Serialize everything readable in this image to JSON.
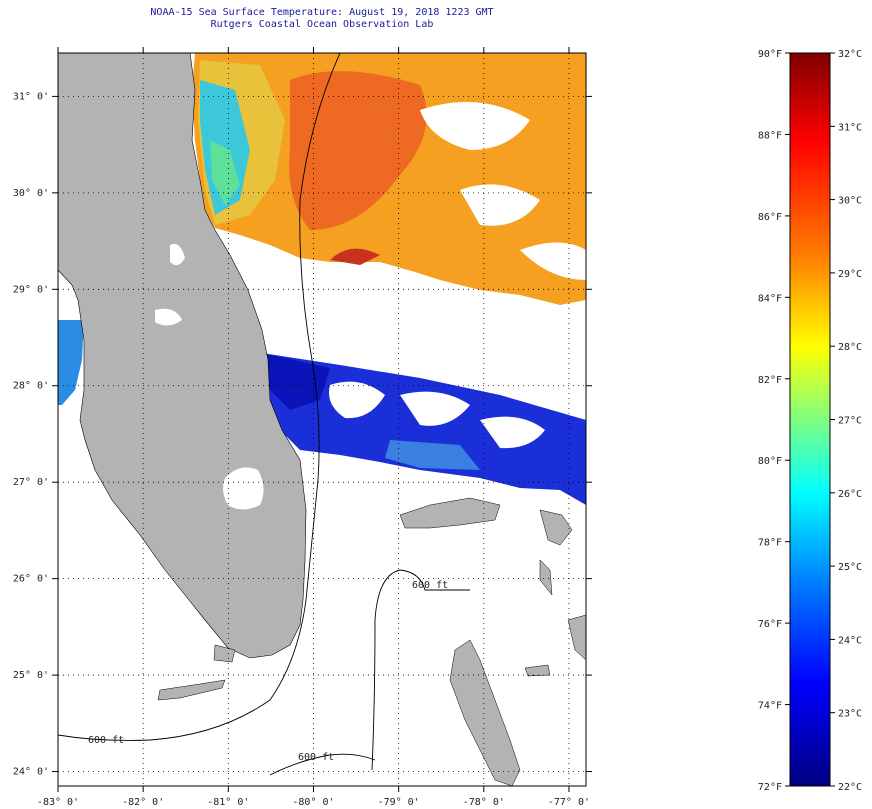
{
  "header": {
    "title": "NOAA-15 Sea Surface Temperature:  August 19, 2018 1223 GMT",
    "subtitle": "Rutgers Coastal Ocean Observation Lab"
  },
  "map": {
    "lon_range": [
      -83,
      -76.8
    ],
    "lat_range": [
      23.85,
      31.45
    ],
    "lat_ticks": [
      "31° 0'",
      "30° 0'",
      "29° 0'",
      "28° 0'",
      "27° 0'",
      "26° 0'",
      "25° 0'",
      "24° 0'"
    ],
    "lon_ticks": [
      "-83° 0'",
      "-82° 0'",
      "-81° 0'",
      "-80° 0'",
      "-79° 0'",
      "-78° 0'",
      "-77° 0'"
    ],
    "contour_label": "600 ft",
    "colors": {
      "land": "#b3b3b3",
      "ocean_missing": "#ffffff",
      "grid": "#000000"
    }
  },
  "colorbar": {
    "fahrenheit": [
      "90°F",
      "88°F",
      "86°F",
      "84°F",
      "82°F",
      "80°F",
      "78°F",
      "76°F",
      "74°F",
      "72°F"
    ],
    "celsius": [
      "32°C",
      "31°C",
      "30°C",
      "29°C",
      "28°C",
      "27°C",
      "26°C",
      "25°C",
      "24°C",
      "23°C",
      "22°C"
    ],
    "stops": [
      "#800000",
      "#ff0000",
      "#ff8000",
      "#ffff00",
      "#80ff80",
      "#00ffff",
      "#0080ff",
      "#0000ff",
      "#000080"
    ]
  }
}
